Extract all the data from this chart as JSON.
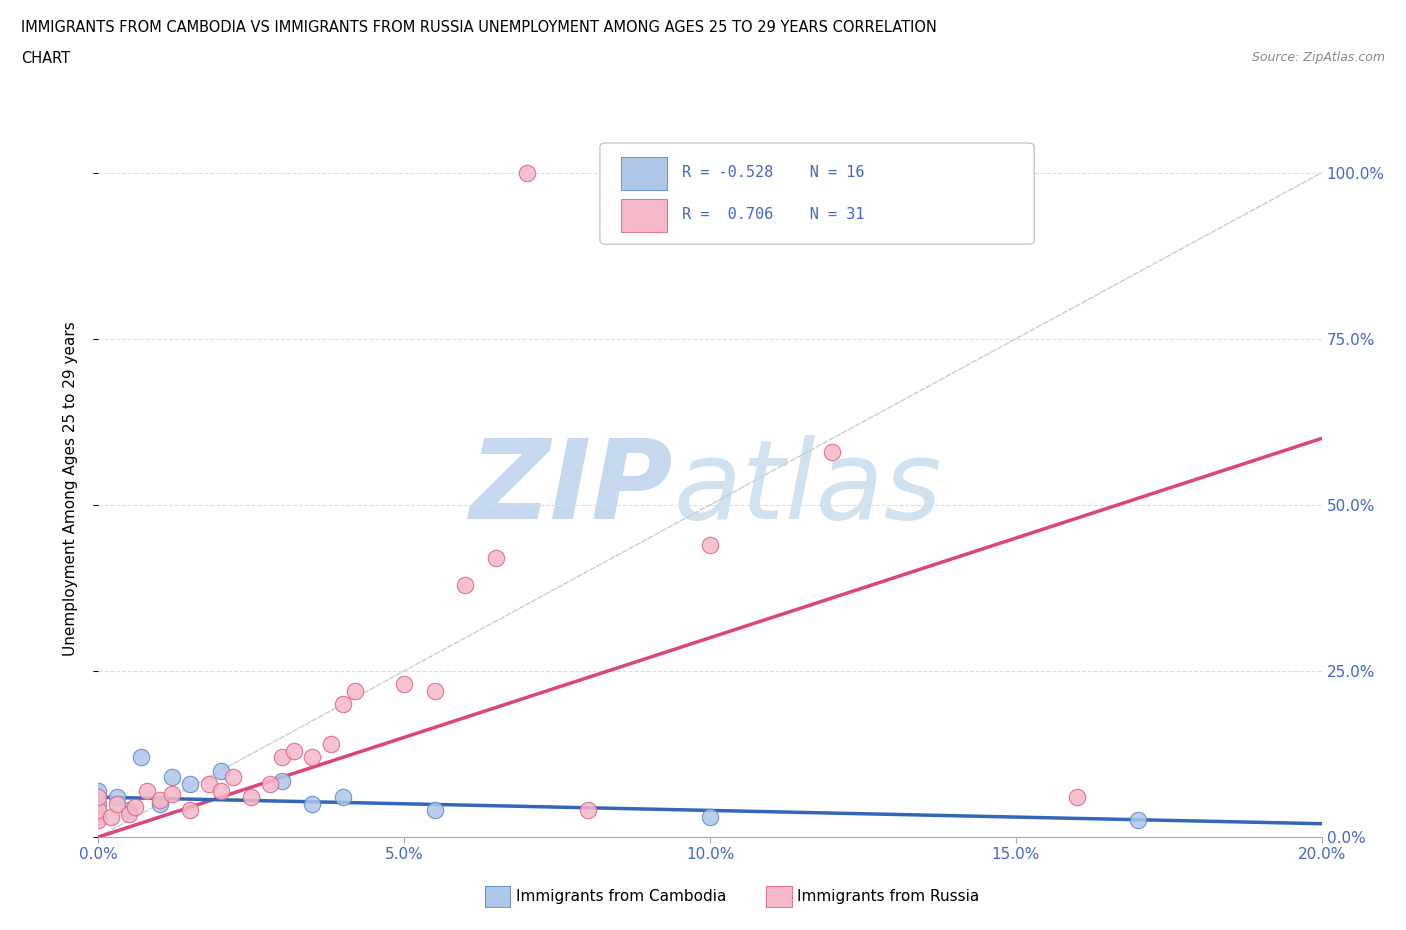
{
  "title_line1": "IMMIGRANTS FROM CAMBODIA VS IMMIGRANTS FROM RUSSIA UNEMPLOYMENT AMONG AGES 25 TO 29 YEARS CORRELATION",
  "title_line2": "CHART",
  "source": "Source: ZipAtlas.com",
  "ylabel": "Unemployment Among Ages 25 to 29 years",
  "xlim": [
    0.0,
    0.2
  ],
  "ylim": [
    0.0,
    1.05
  ],
  "xtick_labels": [
    "0.0%",
    "5.0%",
    "10.0%",
    "15.0%",
    "20.0%"
  ],
  "xtick_values": [
    0.0,
    0.05,
    0.1,
    0.15,
    0.2
  ],
  "ytick_labels_right": [
    "0.0%",
    "25.0%",
    "50.0%",
    "75.0%",
    "100.0%"
  ],
  "ytick_values_right": [
    0.0,
    0.25,
    0.5,
    0.75,
    1.0
  ],
  "color_cambodia_fill": "#aec6e8",
  "color_cambodia_edge": "#5588cc",
  "color_russia_fill": "#f5b8c8",
  "color_russia_edge": "#e06080",
  "color_trendline_cambodia": "#3366bb",
  "color_trendline_russia": "#dd4477",
  "color_refline": "#cccccc",
  "blue_label_color": "#4466cc",
  "legend_label_cambodia": "Immigrants from Cambodia",
  "legend_label_russia": "Immigrants from Russia",
  "cambodia_x": [
    0.0,
    0.0,
    0.0,
    0.003,
    0.005,
    0.007,
    0.01,
    0.012,
    0.015,
    0.02,
    0.03,
    0.035,
    0.04,
    0.055,
    0.1,
    0.17
  ],
  "cambodia_y": [
    0.03,
    0.05,
    0.07,
    0.06,
    0.04,
    0.12,
    0.05,
    0.09,
    0.08,
    0.1,
    0.085,
    0.05,
    0.06,
    0.04,
    0.03,
    0.025
  ],
  "russia_x": [
    0.0,
    0.0,
    0.0,
    0.002,
    0.003,
    0.005,
    0.006,
    0.008,
    0.01,
    0.012,
    0.015,
    0.018,
    0.02,
    0.022,
    0.025,
    0.028,
    0.03,
    0.032,
    0.035,
    0.038,
    0.04,
    0.042,
    0.05,
    0.055,
    0.06,
    0.065,
    0.07,
    0.08,
    0.1,
    0.12,
    0.16
  ],
  "russia_y": [
    0.025,
    0.04,
    0.06,
    0.03,
    0.05,
    0.035,
    0.045,
    0.07,
    0.055,
    0.065,
    0.04,
    0.08,
    0.07,
    0.09,
    0.06,
    0.08,
    0.12,
    0.13,
    0.12,
    0.14,
    0.2,
    0.22,
    0.23,
    0.22,
    0.38,
    0.42,
    1.0,
    0.04,
    0.44,
    0.58,
    0.06
  ],
  "russia_trendline_x": [
    0.0,
    0.2
  ],
  "russia_trendline_y": [
    0.0,
    0.6
  ],
  "cambodia_trendline_x": [
    0.0,
    0.2
  ],
  "cambodia_trendline_y": [
    0.06,
    0.02
  ]
}
